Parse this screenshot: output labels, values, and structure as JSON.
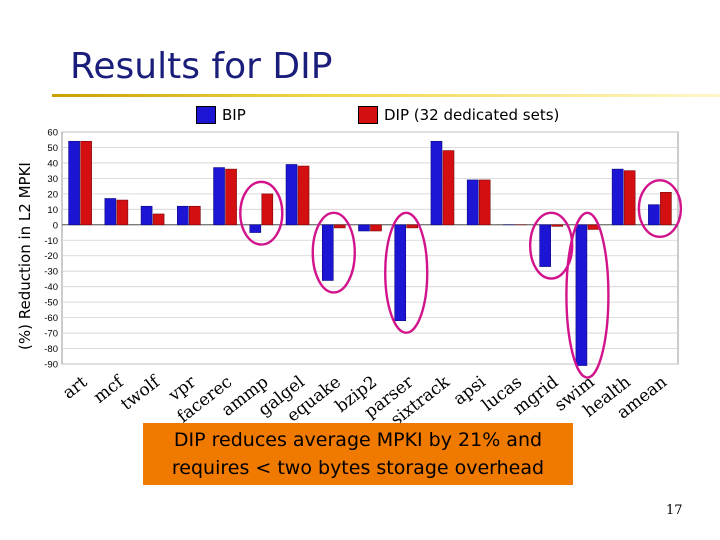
{
  "slide": {
    "title": "Results for DIP",
    "summary_line1": "DIP reduces average MPKI by 21% and",
    "summary_line2": "requires < two bytes storage overhead",
    "page_number": "17",
    "colors": {
      "bip": "#1c16d4",
      "dip": "#d40f12",
      "highlight": "#d2148c",
      "summary_bg": "#f07900"
    }
  },
  "chart_data": {
    "type": "bar",
    "title": "",
    "xlabel": "",
    "ylabel": "(%) Reduction in L2 MPKI",
    "ylim": [
      -90,
      60
    ],
    "yticks": [
      "60",
      "50",
      "40",
      "30",
      "20",
      "10",
      "0",
      "-10",
      "-20",
      "-30",
      "-40",
      "-50",
      "-60",
      "-70",
      "-80",
      "-90"
    ],
    "legend_position": "top",
    "categories": [
      "art",
      "mcf",
      "twolf",
      "vpr",
      "facerec",
      "ammp",
      "galgel",
      "equake",
      "bzip2",
      "parser",
      "sixtrack",
      "apsi",
      "lucas",
      "mgrid",
      "swim",
      "health",
      "amean"
    ],
    "series": [
      {
        "name": "BIP",
        "values": [
          54,
          17,
          12,
          12,
          37,
          -5,
          39,
          -36,
          -4,
          -62,
          54,
          29,
          0,
          -27,
          -91,
          36,
          13
        ]
      },
      {
        "name": "DIP (32 dedicated sets)",
        "values": [
          54,
          16,
          7,
          12,
          36,
          20,
          38,
          -2,
          -4,
          -2,
          48,
          29,
          0,
          -1,
          -3,
          35,
          21
        ]
      }
    ],
    "highlighted_categories": [
      "ammp",
      "equake",
      "parser",
      "mgrid",
      "swim",
      "amean"
    ]
  }
}
